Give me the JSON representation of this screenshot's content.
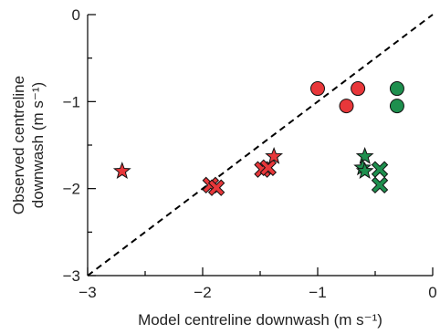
{
  "chart_data": {
    "type": "scatter",
    "title": "",
    "xlabel": "Model centreline downwash (m s⁻¹)",
    "ylabel_line1": "Observed centreline",
    "ylabel_line2": "downwash (m s⁻¹)",
    "xlim": [
      -3,
      0
    ],
    "ylim": [
      -3,
      0
    ],
    "x_ticks": [
      -3,
      -2,
      -1,
      0
    ],
    "y_ticks": [
      -3,
      -2,
      -1,
      0
    ],
    "x_tick_labels": [
      "−3",
      "−2",
      "−1",
      "0"
    ],
    "y_tick_labels": [
      "−3",
      "−2",
      "−1",
      "0"
    ],
    "grid": false,
    "legend": "none",
    "reference_line": {
      "style": "dashed",
      "from": [
        -3,
        -3
      ],
      "to": [
        0,
        0
      ]
    },
    "series": [
      {
        "marker": "circle",
        "color": "#e8373a",
        "points": [
          [
            -1.0,
            -0.85
          ],
          [
            -0.65,
            -0.85
          ],
          [
            -0.75,
            -1.05
          ]
        ]
      },
      {
        "marker": "circle",
        "color": "#1e8f4e",
        "points": [
          [
            -0.31,
            -0.85
          ],
          [
            -0.31,
            -1.05
          ]
        ]
      },
      {
        "marker": "cross",
        "color": "#e8373a",
        "points": [
          [
            -1.93,
            -1.96
          ],
          [
            -1.88,
            -1.99
          ],
          [
            -1.48,
            -1.78
          ],
          [
            -1.43,
            -1.76
          ]
        ]
      },
      {
        "marker": "cross",
        "color": "#1e8f4e",
        "points": [
          [
            -0.46,
            -1.78
          ],
          [
            -0.46,
            -1.96
          ]
        ]
      },
      {
        "marker": "star",
        "color": "#e8373a",
        "points": [
          [
            -2.7,
            -1.8
          ],
          [
            -1.38,
            -1.63
          ]
        ]
      },
      {
        "marker": "star",
        "color": "#1e8f4e",
        "points": [
          [
            -0.59,
            -1.63
          ],
          [
            -0.61,
            -1.76
          ],
          [
            -0.59,
            -1.8
          ]
        ]
      }
    ]
  }
}
